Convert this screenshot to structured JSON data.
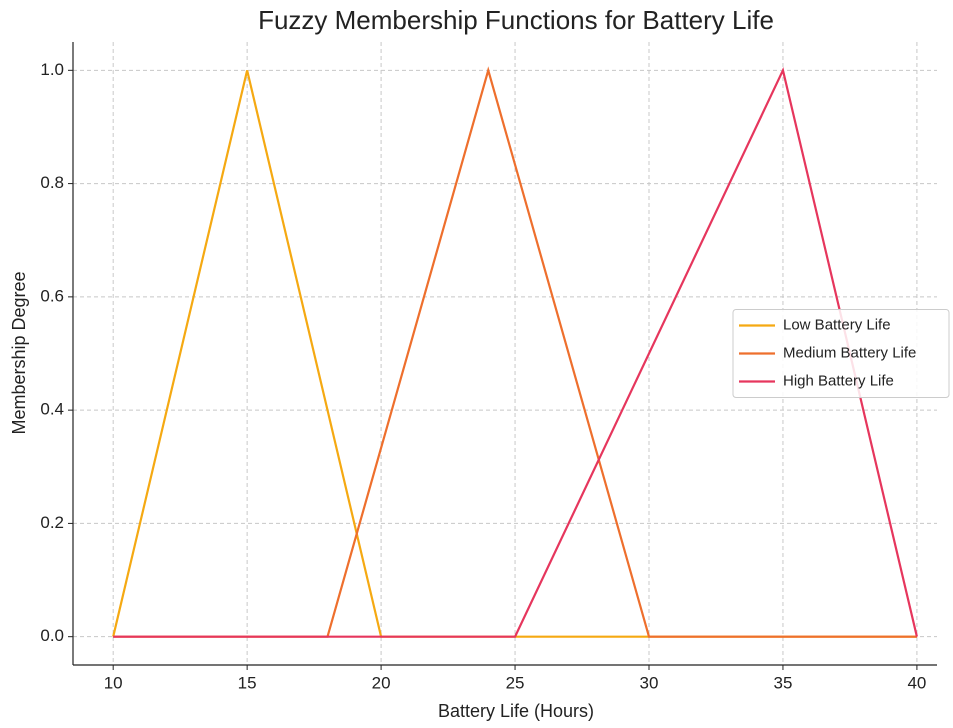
{
  "chart_data": {
    "type": "line",
    "title": "Fuzzy Membership Functions for Battery Life",
    "xlabel": "Battery Life (Hours)",
    "ylabel": "Membership Degree",
    "series": [
      {
        "name": "Low Battery Life",
        "color": "#f5a912",
        "x": [
          10,
          15,
          20,
          40
        ],
        "values": [
          0,
          1,
          0,
          0
        ]
      },
      {
        "name": "Medium Battery Life",
        "color": "#ee6f2d",
        "x": [
          10,
          18,
          24,
          30,
          40
        ],
        "values": [
          0,
          0,
          1,
          0,
          0
        ]
      },
      {
        "name": "High Battery Life",
        "color": "#e6365d",
        "x": [
          10,
          25,
          35,
          40
        ],
        "values": [
          0,
          0,
          1,
          0
        ]
      }
    ],
    "xlim": [
      8.5,
      40.75
    ],
    "xticks": [
      10,
      15,
      20,
      25,
      30,
      35,
      40
    ],
    "ylim": [
      -0.05,
      1.05
    ],
    "yticks": [
      {
        "value": 0,
        "label": "0.0"
      },
      {
        "value": 0.2,
        "label": "0.2"
      },
      {
        "value": 0.4,
        "label": "0.4"
      },
      {
        "value": 0.6,
        "label": "0.6"
      },
      {
        "value": 0.8,
        "label": "0.8"
      },
      {
        "value": 1,
        "label": "1.0"
      }
    ],
    "grid": true,
    "legend": "right"
  }
}
